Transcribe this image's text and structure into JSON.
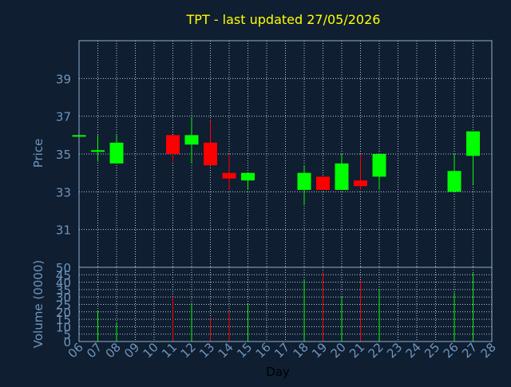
{
  "colors": {
    "background": "#0f1e30",
    "plot_border": "#8fb0d0",
    "grid": "#b8c8d8",
    "title": "#ffff00",
    "axis_text": "#6f95bd",
    "up": "#00ff00",
    "down": "#ff0000"
  },
  "chart_data": {
    "type": "candlestick",
    "title": "TPT - last updated 27/05/2026",
    "xlabel": "Day",
    "price_panel": {
      "ylabel": "Price",
      "ylim": [
        29,
        41
      ],
      "yticks": [
        "31",
        "33",
        "35",
        "37",
        "39"
      ],
      "ytick_values": [
        31,
        33,
        35,
        37,
        39
      ],
      "grid": true
    },
    "volume_panel": {
      "ylabel": "Volume (0000)",
      "ylim": [
        0,
        50
      ],
      "yticks": [
        "0",
        "5",
        "10",
        "15",
        "20",
        "25",
        "30",
        "35",
        "40",
        "45",
        "50"
      ],
      "ytick_values": [
        0,
        5,
        10,
        15,
        20,
        25,
        30,
        35,
        40,
        45,
        50
      ],
      "grid": true
    },
    "x_tick_labels": [
      "06",
      "07",
      "08",
      "09",
      "10",
      "11",
      "12",
      "13",
      "14",
      "15",
      "16",
      "17",
      "18",
      "19",
      "20",
      "21",
      "22",
      "23",
      "24",
      "25",
      "26",
      "27",
      "28"
    ],
    "candles": [
      {
        "day": "06",
        "open": 36.0,
        "high": 36.0,
        "low": 36.0,
        "close": 36.0,
        "volume": 0
      },
      {
        "day": "07",
        "open": 35.2,
        "high": 36.0,
        "low": 34.6,
        "close": 35.2,
        "volume": 21
      },
      {
        "day": "08",
        "open": 34.5,
        "high": 36.0,
        "low": 34.5,
        "close": 35.6,
        "volume": 13
      },
      {
        "day": "11",
        "open": 36.0,
        "high": 36.0,
        "low": 34.6,
        "close": 35.0,
        "volume": 30
      },
      {
        "day": "12",
        "open": 35.5,
        "high": 36.9,
        "low": 34.5,
        "close": 36.0,
        "volume": 26
      },
      {
        "day": "13",
        "open": 35.6,
        "high": 36.8,
        "low": 34.4,
        "close": 34.4,
        "volume": 16
      },
      {
        "day": "14",
        "open": 34.0,
        "high": 35.0,
        "low": 33.1,
        "close": 33.7,
        "volume": 20
      },
      {
        "day": "15",
        "open": 33.6,
        "high": 34.0,
        "low": 33.1,
        "close": 34.0,
        "volume": 25
      },
      {
        "day": "18",
        "open": 33.1,
        "high": 34.4,
        "low": 32.3,
        "close": 34.0,
        "volume": 42
      },
      {
        "day": "19",
        "open": 33.8,
        "high": 33.8,
        "low": 33.1,
        "close": 33.1,
        "volume": 47
      },
      {
        "day": "20",
        "open": 33.1,
        "high": 35.0,
        "low": 33.1,
        "close": 34.5,
        "volume": 30
      },
      {
        "day": "21",
        "open": 33.6,
        "high": 35.0,
        "low": 33.1,
        "close": 33.3,
        "volume": 41
      },
      {
        "day": "22",
        "open": 33.8,
        "high": 35.0,
        "low": 33.1,
        "close": 35.0,
        "volume": 35
      },
      {
        "day": "26",
        "open": 33.0,
        "high": 35.0,
        "low": 33.0,
        "close": 34.1,
        "volume": 33
      },
      {
        "day": "27",
        "open": 34.9,
        "high": 36.2,
        "low": 33.4,
        "close": 36.2,
        "volume": 46
      }
    ]
  }
}
